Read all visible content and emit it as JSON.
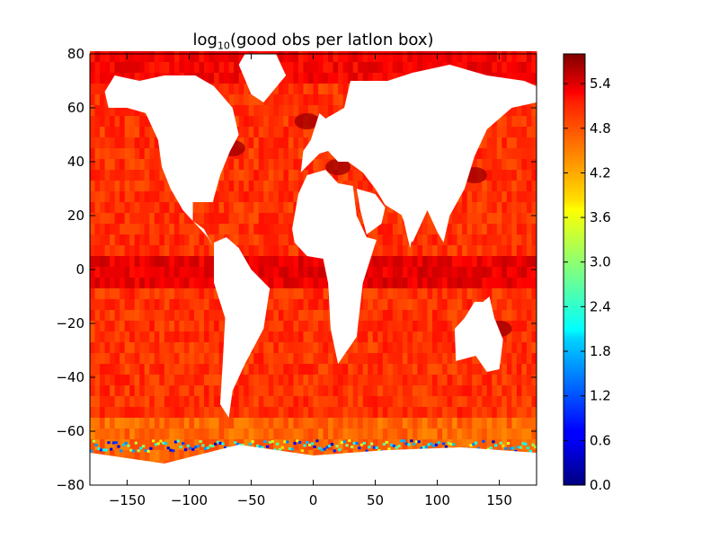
{
  "chart_data": {
    "type": "heatmap",
    "title": {
      "prefix": "log",
      "subscript": "10",
      "suffix": "(good obs per latlon box)"
    },
    "xlabel": "",
    "ylabel": "",
    "xlim": [
      -180,
      180
    ],
    "ylim": [
      -80,
      80
    ],
    "x_ticks": [
      -150,
      -100,
      -50,
      0,
      50,
      100,
      150
    ],
    "x_tick_labels": [
      "−150",
      "−100",
      "−50",
      "0",
      "50",
      "100",
      "150"
    ],
    "y_ticks": [
      80,
      60,
      40,
      20,
      0,
      -20,
      -40,
      -60,
      -80
    ],
    "y_tick_labels": [
      "80",
      "60",
      "40",
      "20",
      "0",
      "−20",
      "−40",
      "−60",
      "−80"
    ],
    "colorbar": {
      "colormap": "jet",
      "range": [
        0.0,
        5.8
      ],
      "ticks": [
        0.0,
        0.6,
        1.2,
        1.8,
        2.4,
        3.0,
        3.6,
        4.2,
        4.8,
        5.4
      ],
      "tick_labels": [
        "0.0",
        "0.6",
        "1.2",
        "1.8",
        "2.4",
        "3.0",
        "3.6",
        "4.2",
        "4.8",
        "5.4"
      ]
    },
    "grid": false,
    "description_values": {
      "open_ocean_typical": 4.8,
      "equatorial_pacific_band": 5.2,
      "high_density_regions": 5.6,
      "ice_edge_min": 0.3,
      "land_value": null
    },
    "land_color": "#ffffff"
  }
}
